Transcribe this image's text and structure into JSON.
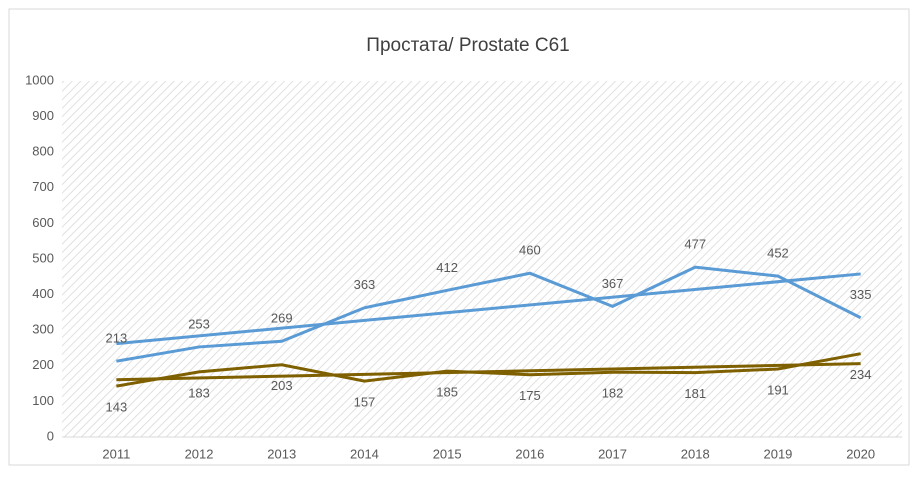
{
  "chart_data": {
    "type": "line",
    "title": "Простата/ Prostate C61",
    "categories": [
      "2011",
      "2012",
      "2013",
      "2014",
      "2015",
      "2016",
      "2017",
      "2018",
      "2019",
      "2020"
    ],
    "series": [
      {
        "color": "#5b9bd5",
        "values": [
          213,
          253,
          269,
          363,
          412,
          460,
          367,
          477,
          452,
          335
        ]
      },
      {
        "color": "#7f6000",
        "values": [
          143,
          183,
          203,
          157,
          185,
          175,
          182,
          181,
          191,
          234
        ]
      }
    ],
    "ylim": [
      0,
      1000
    ],
    "yticks": [
      0,
      100,
      200,
      300,
      400,
      500,
      600,
      700,
      800,
      900,
      1000
    ],
    "grid": true,
    "trendline": "linear",
    "data_labels": true
  }
}
